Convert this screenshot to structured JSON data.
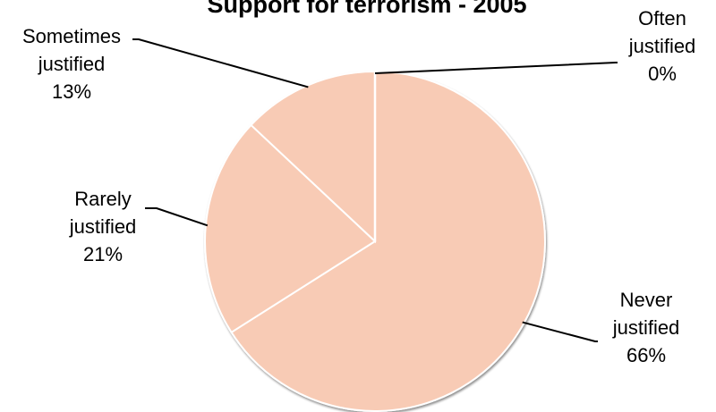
{
  "chart_data": {
    "type": "pie",
    "title": "Support for terrorism - 2005",
    "categories": [
      "Often justified",
      "Sometimes justified",
      "Rarely justified",
      "Never justified"
    ],
    "values": [
      0,
      13,
      21,
      66
    ],
    "series": [
      {
        "values": [
          0,
          13,
          21,
          66
        ],
        "slices": [
          {
            "label_lines": [
              "Often",
              "justified"
            ],
            "value_text": "0%"
          },
          {
            "label_lines": [
              "Sometimes",
              "justified"
            ],
            "value_text": "13%"
          },
          {
            "label_lines": [
              "Rarely",
              "justified"
            ],
            "value_text": "21%"
          },
          {
            "label_lines": [
              "Never",
              "justified"
            ],
            "value_text": "66%"
          }
        ]
      }
    ],
    "colors": {
      "slice_fill": "#f8cbb5",
      "slice_edge": "#ffffff",
      "outline_shadow": "#bfbfbf"
    },
    "legend": "none"
  }
}
